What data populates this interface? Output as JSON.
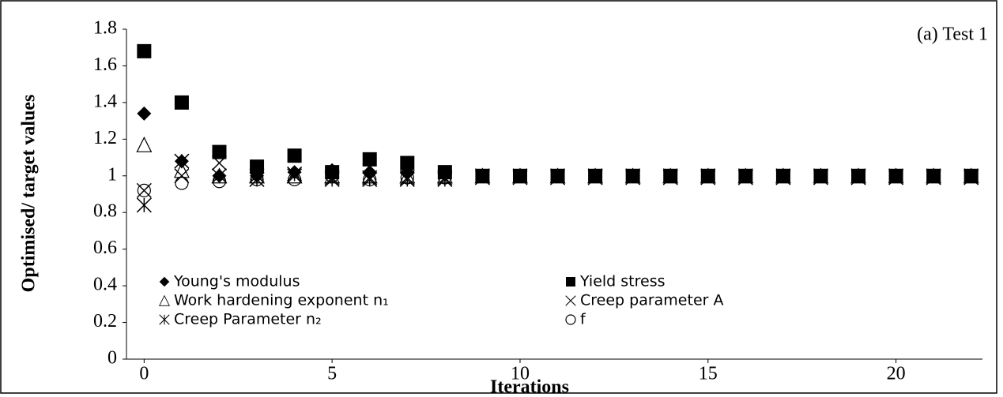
{
  "chart_data": {
    "type": "scatter",
    "annotation": "(a) Test 1",
    "x_label": "Iterations",
    "y_label": "Optimised/ target values",
    "x": [
      0,
      1,
      2,
      3,
      4,
      5,
      6,
      7,
      8,
      9,
      10,
      11,
      12,
      13,
      14,
      15,
      16,
      17,
      18,
      19,
      20,
      21,
      22
    ],
    "series": [
      {
        "name": "Young's modulus",
        "color": "#000000",
        "marker": "diamond",
        "values": [
          1.34,
          1.08,
          1.0,
          1.0,
          1.02,
          1.03,
          1.02,
          1.02,
          1.01,
          1.0,
          1.0,
          1.0,
          1.0,
          1.0,
          1.0,
          1.0,
          1.0,
          1.0,
          1.0,
          1.0,
          1.0,
          1.0,
          1.0
        ]
      },
      {
        "name": "Yield stress",
        "color": "#000000",
        "marker": "square",
        "values": [
          1.68,
          1.4,
          1.13,
          1.05,
          1.11,
          1.02,
          1.09,
          1.07,
          1.02,
          1.0,
          1.0,
          1.0,
          1.0,
          1.0,
          1.0,
          1.0,
          1.0,
          1.0,
          1.0,
          1.0,
          1.0,
          1.0,
          1.0
        ]
      },
      {
        "name": "Work hardening exponent n₁",
        "color": "#000000",
        "marker": "triangle",
        "values": [
          1.17,
          1.03,
          1.0,
          1.0,
          1.0,
          1.0,
          1.0,
          1.0,
          1.0,
          1.0,
          1.0,
          1.0,
          1.0,
          1.0,
          1.0,
          1.0,
          1.0,
          1.0,
          1.0,
          1.0,
          1.0,
          1.0,
          1.0
        ]
      },
      {
        "name": "Creep parameter A",
        "color": "#000000",
        "marker": "cross",
        "values": [
          0.92,
          1.0,
          1.07,
          1.0,
          1.0,
          0.99,
          0.99,
          0.99,
          0.99,
          0.99,
          0.99,
          0.99,
          0.99,
          0.99,
          0.99,
          0.99,
          0.99,
          0.99,
          0.99,
          0.99,
          0.99,
          0.99,
          0.99
        ]
      },
      {
        "name": "Creep Parameter n₂",
        "color": "#000000",
        "marker": "asterisk",
        "values": [
          0.84,
          1.08,
          1.0,
          0.98,
          1.01,
          0.98,
          0.98,
          0.98,
          0.98,
          1.0,
          1.0,
          1.0,
          1.0,
          1.0,
          1.0,
          1.0,
          1.0,
          1.0,
          1.0,
          1.0,
          1.0,
          1.0,
          1.0
        ]
      },
      {
        "name": "f",
        "color": "#000000",
        "marker": "circle",
        "values": [
          0.92,
          0.96,
          0.97,
          0.98,
          0.98,
          1.0,
          0.98,
          0.99,
          0.99,
          1.0,
          1.0,
          1.0,
          1.0,
          1.0,
          1.0,
          1.0,
          1.0,
          1.0,
          1.0,
          1.0,
          1.0,
          1.0,
          1.0
        ]
      }
    ],
    "xlim": [
      -0.47,
      22.3
    ],
    "xticks": [
      0,
      5,
      10,
      15,
      20
    ],
    "ylim": [
      0,
      1.8
    ],
    "yticks": [
      0,
      0.2,
      0.4,
      0.6,
      0.8,
      1,
      1.2,
      1.4,
      1.6,
      1.8
    ],
    "grid": false
  }
}
